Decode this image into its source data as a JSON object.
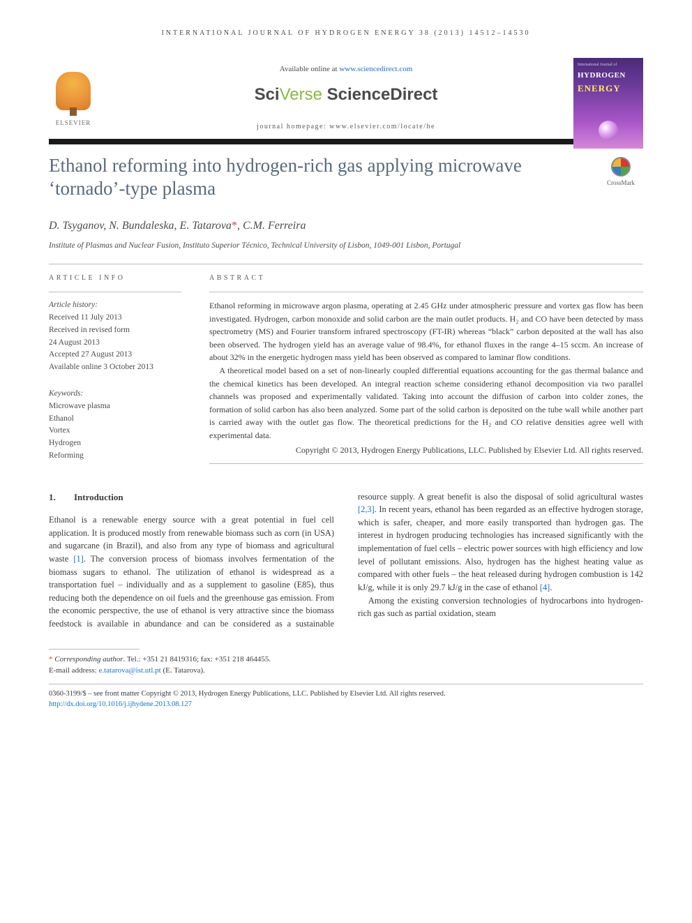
{
  "running_head": "INTERNATIONAL JOURNAL OF HYDROGEN ENERGY 38 (2013) 14512–14530",
  "header": {
    "available_prefix": "Available online at ",
    "available_link": "www.sciencedirect.com",
    "sd_sci": "Sci",
    "sd_verse": "Verse",
    "sd_direct": " ScienceDirect",
    "homepage": "journal homepage: www.elsevier.com/locate/he",
    "elsevier": "ELSEVIER",
    "cover_top": "International Journal of",
    "cover_hydrogen": "HYDROGEN",
    "cover_energy": "ENERGY"
  },
  "title": "Ethanol reforming into hydrogen-rich gas applying microwave ‘tornado’-type plasma",
  "crossmark": "CrossMark",
  "authors_html": "D. Tsyganov, N. Bundaleska, E. Tatarova",
  "authors_last": ", C.M. Ferreira",
  "affiliation": "Institute of Plasmas and Nuclear Fusion, Instituto Superior Técnico, Technical University of Lisbon, 1049-001 Lisbon, Portugal",
  "article_info": {
    "head": "ARTICLE INFO",
    "history_label": "Article history:",
    "received": "Received 11 July 2013",
    "revised1": "Received in revised form",
    "revised2": "24 August 2013",
    "accepted": "Accepted 27 August 2013",
    "online": "Available online 3 October 2013",
    "kw_label": "Keywords:",
    "kw": [
      "Microwave plasma",
      "Ethanol",
      "Vortex",
      "Hydrogen",
      "Reforming"
    ]
  },
  "abstract": {
    "head": "ABSTRACT",
    "p1": "Ethanol reforming in microwave argon plasma, operating at 2.45 GHz under atmospheric pressure and vortex gas flow has been investigated. Hydrogen, carbon monoxide and solid carbon are the main outlet products. H₂ and CO have been detected by mass spectrometry (MS) and Fourier transform infrared spectroscopy (FT-IR) whereas “black” carbon deposited at the wall has also been observed. The hydrogen yield has an average value of 98.4%, for ethanol fluxes in the range 4–15 sccm. An increase of about 32% in the energetic hydrogen mass yield has been observed as compared to laminar flow conditions.",
    "p2": "A theoretical model based on a set of non-linearly coupled differential equations accounting for the gas thermal balance and the chemical kinetics has been developed. An integral reaction scheme considering ethanol decomposition via two parallel channels was proposed and experimentally validated. Taking into account the diffusion of carbon into colder zones, the formation of solid carbon has also been analyzed. Some part of the solid carbon is deposited on the tube wall while another part is carried away with the outlet gas flow. The theoretical predictions for the H₂ and CO relative densities agree well with experimental data.",
    "copyright": "Copyright © 2013, Hydrogen Energy Publications, LLC. Published by Elsevier Ltd. All rights reserved."
  },
  "intro": {
    "num": "1.",
    "title": "Introduction",
    "p1a": "Ethanol is a renewable energy source with a great potential in fuel cell application. It is produced mostly from renewable biomass such as corn (in USA) and sugarcane (in Brazil), and also from any type of biomass and agricultural waste ",
    "ref1": "[1]",
    "p1b": ". The conversion process of biomass involves fermentation of the biomass sugars to ethanol. The utilization of ethanol is widespread as a transportation fuel – individually and as a supplement to gasoline (E85), thus reducing both the dependence on oil fuels and the greenhouse gas emission. From the economic perspective, the use of ethanol is very attractive since the biomass feedstock is available in abundance and can",
    "p2a": "be considered as a sustainable resource supply. A great benefit is also the disposal of solid agricultural wastes ",
    "ref23": "[2,3]",
    "p2b": ". In recent years, ethanol has been regarded as an effective hydrogen storage, which is safer, cheaper, and more easily transported than hydrogen gas. The interest in hydrogen producing technologies has increased significantly with the implementation of fuel cells – electric power sources with high efficiency and low level of pollutant emissions. Also, hydrogen has the highest heating value as compared with other fuels – the heat released during hydrogen combustion is 142 kJ/g, while it is only 29.7 kJ/g in the case of ethanol ",
    "ref4": "[4]",
    "p2c": ".",
    "p3": "Among the existing conversion technologies of hydrocarbons into hydrogen-rich gas such as partial oxidation, steam"
  },
  "footnote": {
    "corr_label": "Corresponding author",
    "tel": ". Tel.: +351 21 8419316; fax: +351 218 464455.",
    "email_label": "E-mail address: ",
    "email": "e.tatarova@ist.utl.pt",
    "email_suffix": " (E. Tatarova)."
  },
  "footer": {
    "line1": "0360-3199/$ – see front matter Copyright © 2013, Hydrogen Energy Publications, LLC. Published by Elsevier Ltd. All rights reserved.",
    "doi": "http://dx.doi.org/10.1016/j.ijhydene.2013.08.127"
  },
  "colors": {
    "link": "#1a6fc4",
    "title": "#5a6a7a",
    "accent_red": "#d43a3a",
    "rule": "#bcbcbc",
    "bar": "#1a1a1a",
    "sd_green": "#8ab843"
  }
}
